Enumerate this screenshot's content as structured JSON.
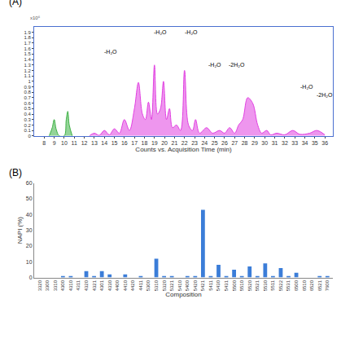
{
  "chart_data": [
    {
      "type": "area",
      "title": "(A)",
      "x_label": "Counts vs. Acquisition Time (min)",
      "y_multiplier": "x10⁶",
      "xlim": [
        7,
        36.8
      ],
      "xticks": [
        8,
        9,
        10,
        11,
        12,
        13,
        14,
        15,
        16,
        17,
        18,
        19,
        20,
        21,
        22,
        23,
        24,
        25,
        26,
        27,
        28,
        29,
        30,
        31,
        32,
        33,
        34,
        35,
        36
      ],
      "ylim": [
        0,
        2.0
      ],
      "yticks": [
        0,
        0.1,
        0.2,
        0.3,
        0.4,
        0.5,
        0.6,
        0.7,
        0.8,
        0.9,
        1,
        1.1,
        1.2,
        1.3,
        1.4,
        1.5,
        1.6,
        1.7,
        1.8,
        1.9
      ],
      "grid": false,
      "series": [
        {
          "color": "#3cb043",
          "x": [
            8.5,
            8.8,
            9.0,
            9.2,
            9.5,
            10.0,
            10.2,
            10.35,
            10.5,
            10.8
          ],
          "values": [
            0,
            0.15,
            0.3,
            0.12,
            0,
            0,
            0.3,
            0.45,
            0.2,
            0
          ]
        },
        {
          "color": "#e03fe0",
          "x": [
            12.5,
            13,
            13.5,
            14,
            14.5,
            15,
            15.5,
            16,
            16.5,
            17,
            17.4,
            17.8,
            18.1,
            18.4,
            18.7,
            19.0,
            19.3,
            19.6,
            19.9,
            20.2,
            20.5,
            20.8,
            21.2,
            21.6,
            22.0,
            22.4,
            22.8,
            23.1,
            23.5,
            24.2,
            24.8,
            25.5,
            26,
            26.5,
            27,
            27.4,
            27.8,
            28.3,
            28.8,
            29.3,
            29.7,
            30.2,
            30.6,
            31.2,
            32,
            32.8,
            33.5,
            34.5,
            35.2,
            36
          ],
          "values": [
            0,
            0.05,
            0.01,
            0.1,
            0.02,
            0.13,
            0.05,
            0.3,
            0.1,
            0.5,
            0.98,
            0.4,
            0.3,
            0.62,
            0.3,
            1.3,
            0.4,
            0.5,
            1.0,
            0.3,
            0.5,
            0.15,
            0.2,
            0.1,
            1.2,
            0.2,
            0.1,
            0.3,
            0.05,
            0.15,
            0.05,
            0.1,
            0.05,
            0.15,
            0.05,
            0.2,
            0.3,
            0.7,
            0.6,
            0.2,
            0.05,
            0.1,
            0.02,
            0.05,
            0.02,
            0.1,
            0.03,
            0.05,
            0.1,
            0.02
          ]
        }
      ],
      "annotations": [
        {
          "text": "-H₂O",
          "x": 14.6,
          "y": 1.55
        },
        {
          "text": "-H₂O",
          "x": 19.6,
          "y": 1.9
        },
        {
          "text": "-H₂O",
          "x": 22.7,
          "y": 1.9
        },
        {
          "text": "-H₂O",
          "x": 25.0,
          "y": 1.3
        },
        {
          "text": "-2H₂O",
          "x": 27.2,
          "y": 1.3
        },
        {
          "text": "-H₂O",
          "x": 34.2,
          "y": 0.9
        },
        {
          "text": "-2H₂O",
          "x": 36.0,
          "y": 0.75
        }
      ]
    },
    {
      "type": "bar",
      "title": "(B)",
      "x_label": "Composition",
      "y_label": "NAPI (%)",
      "categories": [
        "3320",
        "3300",
        "3310",
        "4300",
        "4310",
        "4311",
        "4320",
        "4321",
        "4301",
        "4330",
        "4400",
        "4410",
        "4420",
        "4411",
        "5300",
        "5310",
        "5320",
        "5321",
        "5410",
        "5400",
        "5420",
        "5421",
        "5411",
        "5430",
        "5431",
        "5500",
        "5510",
        "5520",
        "5521",
        "5530",
        "5511",
        "5522",
        "5531",
        "6500",
        "6510",
        "6520",
        "6521",
        "7600"
      ],
      "values": [
        0,
        0,
        0,
        0.5,
        1,
        0,
        4,
        0.5,
        4,
        2,
        0,
        2,
        0,
        0.5,
        0,
        12,
        0.5,
        0.5,
        0,
        1,
        0.5,
        43,
        1,
        8,
        0.5,
        5,
        0.5,
        7,
        0.5,
        9,
        0.5,
        6,
        0.5,
        3,
        0,
        0,
        1,
        0.5
      ],
      "color": "#3b7dd8",
      "ylim": [
        0,
        60
      ],
      "yticks": [
        0,
        10,
        20,
        30,
        40,
        50,
        60
      ],
      "grid": false
    }
  ]
}
